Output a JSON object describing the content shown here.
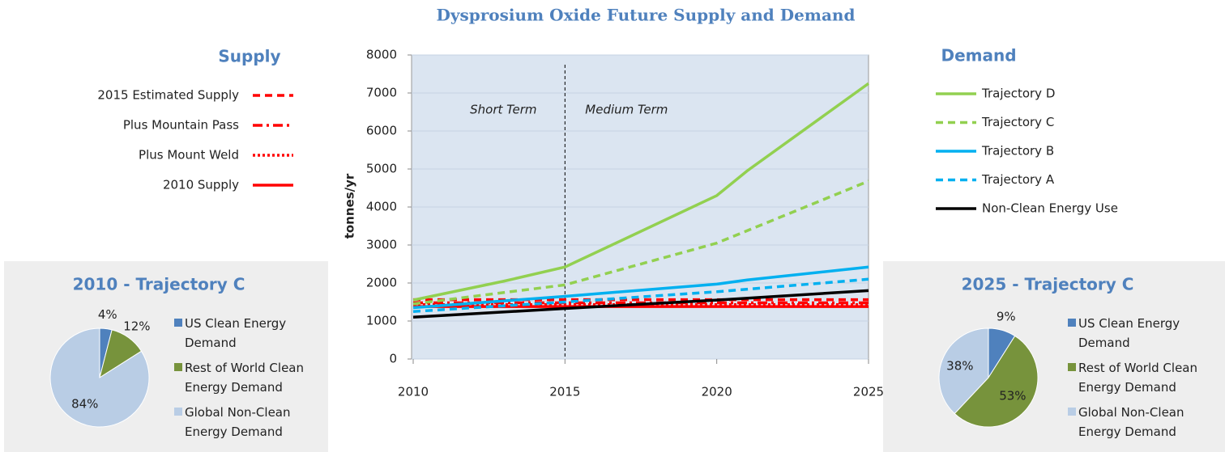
{
  "chart_data": [
    {
      "type": "line",
      "title": "Dysprosium Oxide Future Supply and Demand",
      "y_label": "tonnes/yr",
      "supply_title": "Supply",
      "demand_title": "Demand",
      "annotations": [
        "Short Term",
        "Medium Term"
      ],
      "vline": 2015,
      "xlim": [
        2010,
        2025
      ],
      "xticks": [
        2010,
        2015,
        2020,
        2025
      ],
      "ylim": [
        0,
        8000
      ],
      "yticks": [
        0,
        1000,
        2000,
        3000,
        4000,
        5000,
        6000,
        7000,
        8000
      ],
      "grid": true,
      "series": [
        {
          "name": "2015 Estimated Supply",
          "kind": "supply",
          "dash": "dash",
          "color": "#ff0000",
          "x": [
            2010,
            2025
          ],
          "values": [
            1560,
            1560
          ]
        },
        {
          "name": "Plus Mountain Pass",
          "kind": "supply",
          "dash": "dashdot",
          "color": "#ff0000",
          "x": [
            2010,
            2025
          ],
          "values": [
            1480,
            1480
          ]
        },
        {
          "name": "Plus Mount Weld",
          "kind": "supply",
          "dash": "dot",
          "color": "#ff0000",
          "x": [
            2010,
            2025
          ],
          "values": [
            1430,
            1430
          ]
        },
        {
          "name": "2010 Supply",
          "kind": "supply",
          "dash": "solid",
          "color": "#ff0000",
          "x": [
            2010,
            2025
          ],
          "values": [
            1380,
            1380
          ]
        },
        {
          "name": "Trajectory D",
          "kind": "demand",
          "dash": "solid",
          "color": "#92d050",
          "x": [
            2010,
            2013,
            2015,
            2020,
            2021,
            2025
          ],
          "values": [
            1550,
            2050,
            2420,
            4300,
            4950,
            7250
          ]
        },
        {
          "name": "Trajectory C",
          "kind": "demand",
          "dash": "dash",
          "color": "#92d050",
          "x": [
            2010,
            2015,
            2020,
            2025
          ],
          "values": [
            1450,
            1950,
            3050,
            4680
          ]
        },
        {
          "name": "Trajectory B",
          "kind": "demand",
          "dash": "solid",
          "color": "#00b0f0",
          "x": [
            2010,
            2015,
            2020,
            2021,
            2025
          ],
          "values": [
            1350,
            1650,
            1970,
            2080,
            2420
          ]
        },
        {
          "name": "Trajectory A",
          "kind": "demand",
          "dash": "dash",
          "color": "#00b0f0",
          "x": [
            2010,
            2015,
            2020,
            2025
          ],
          "values": [
            1250,
            1500,
            1770,
            2100
          ]
        },
        {
          "name": "Non-Clean Energy Use",
          "kind": "demand",
          "dash": "solid",
          "color": "#000000",
          "x": [
            2010,
            2015,
            2020,
            2025
          ],
          "values": [
            1100,
            1330,
            1550,
            1800
          ]
        }
      ]
    },
    {
      "type": "pie",
      "title": "2010 - Trajectory C",
      "categories": [
        "US Clean Energy Demand",
        "Rest of World Clean Energy Demand",
        "Global Non-Clean Energy Demand"
      ],
      "values": [
        4,
        12,
        84
      ],
      "value_labels": [
        "4%",
        "12%",
        "84%"
      ],
      "colors": [
        "#4f81bd",
        "#77933c",
        "#b9cde5"
      ]
    },
    {
      "type": "pie",
      "title": "2025 - Trajectory C",
      "categories": [
        "US Clean Energy Demand",
        "Rest of World Clean Energy Demand",
        "Global Non-Clean Energy Demand"
      ],
      "values": [
        9,
        53,
        38
      ],
      "value_labels": [
        "9%",
        "53%",
        "38%"
      ],
      "colors": [
        "#4f81bd",
        "#77933c",
        "#b9cde5"
      ]
    }
  ]
}
